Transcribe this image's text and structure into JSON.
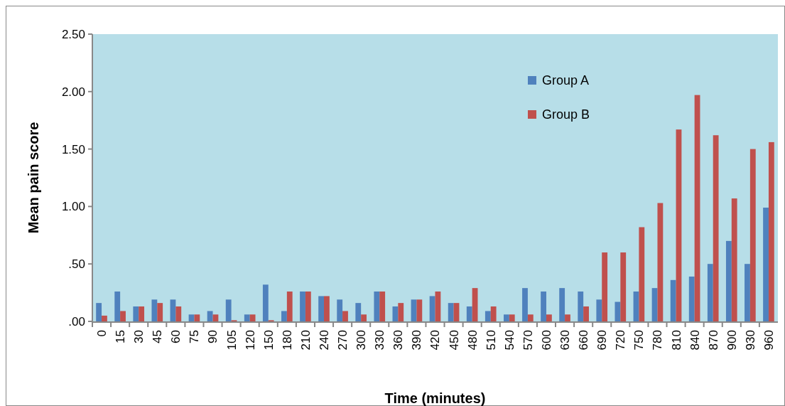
{
  "chart_data": {
    "type": "bar",
    "xlabel": "Time (minutes)",
    "ylabel": "Mean pain score",
    "categories": [
      "0",
      "15",
      "30",
      "45",
      "60",
      "75",
      "90",
      "105",
      "120",
      "150",
      "180",
      "210",
      "240",
      "270",
      "300",
      "330",
      "360",
      "390",
      "420",
      "450",
      "480",
      "510",
      "540",
      "570",
      "600",
      "630",
      "660",
      "690",
      "720",
      "750",
      "780",
      "810",
      "840",
      "870",
      "900",
      "930",
      "960"
    ],
    "series": [
      {
        "name": "Group A",
        "color": "#4f81bd",
        "values": [
          0.16,
          0.26,
          0.13,
          0.19,
          0.19,
          0.06,
          0.09,
          0.19,
          0.06,
          0.32,
          0.09,
          0.26,
          0.22,
          0.19,
          0.16,
          0.26,
          0.13,
          0.19,
          0.22,
          0.16,
          0.13,
          0.09,
          0.06,
          0.29,
          0.26,
          0.29,
          0.26,
          0.19,
          0.17,
          0.26,
          0.29,
          0.36,
          0.39,
          0.5,
          0.7,
          0.5,
          0.99
        ]
      },
      {
        "name": "Group B",
        "color": "#c0504d",
        "values": [
          0.05,
          0.09,
          0.13,
          0.16,
          0.13,
          0.06,
          0.06,
          0.01,
          0.06,
          0.01,
          0.26,
          0.26,
          0.22,
          0.09,
          0.06,
          0.26,
          0.16,
          0.19,
          0.26,
          0.16,
          0.29,
          0.13,
          0.06,
          0.06,
          0.06,
          0.06,
          0.13,
          0.6,
          0.6,
          0.82,
          1.03,
          1.67,
          1.97,
          1.62,
          1.07,
          1.5,
          1.56
        ]
      }
    ],
    "ylim": [
      0,
      2.5
    ],
    "yticks": [
      {
        "value": 0,
        "label": ".00"
      },
      {
        "value": 0.5,
        "label": ".50"
      },
      {
        "value": 1,
        "label": "1.00"
      },
      {
        "value": 1.5,
        "label": "1.50"
      },
      {
        "value": 2,
        "label": "2.00"
      },
      {
        "value": 2.5,
        "label": "2.50"
      }
    ],
    "legend": "top right",
    "grid": false
  }
}
